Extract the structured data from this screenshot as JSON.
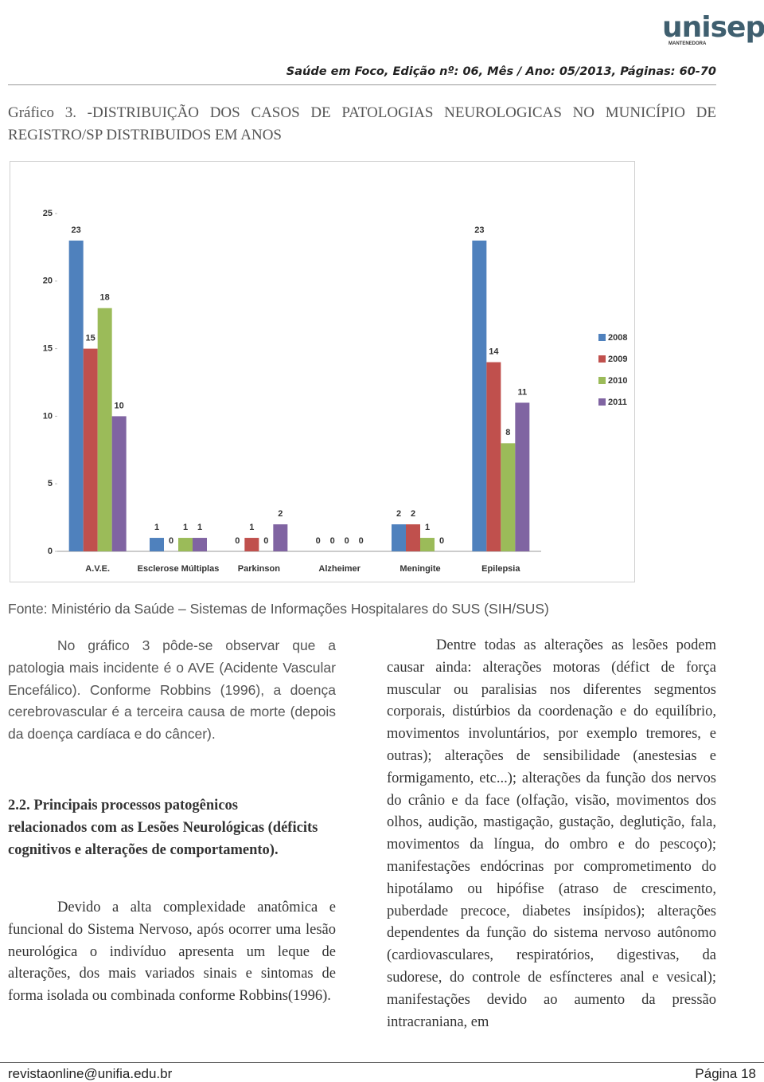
{
  "header": {
    "logo": "unisepe",
    "logo_subtitle": "MANTENEDORA",
    "journal": "Saúde em Foco, Edição nº: 06, Mês / Ano: 05/2013, Páginas: 60-70"
  },
  "caption": "Gráfico 3. -DISTRIBUIÇÃO DOS CASOS DE PATOLOGIAS NEUROLOGICAS NO MUNICÍPIO DE REGISTRO/SP DISTRIBUIDOS EM ANOS",
  "chart_data": {
    "type": "bar",
    "categories": [
      "A.V.E.",
      "Esclerose Múltiplas",
      "Parkinson",
      "Alzheimer",
      "Meningite",
      "Epilepsia"
    ],
    "series": [
      {
        "name": "2008",
        "color": "#4f81bd",
        "values": [
          23,
          1,
          0,
          0,
          2,
          23
        ]
      },
      {
        "name": "2009",
        "color": "#c0504d",
        "values": [
          15,
          0,
          1,
          0,
          2,
          14
        ]
      },
      {
        "name": "2010",
        "color": "#9bbb59",
        "values": [
          18,
          1,
          0,
          0,
          1,
          8
        ]
      },
      {
        "name": "2011",
        "color": "#8064a2",
        "values": [
          10,
          1,
          2,
          0,
          0,
          11
        ]
      }
    ],
    "ylim": [
      0,
      25
    ],
    "yticks": [
      0,
      5,
      10,
      15,
      20,
      25
    ],
    "grid": false,
    "legend": "right"
  },
  "source": "Fonte: Ministério da Saúde – Sistemas de Informações Hospitalares do SUS (SIH/SUS)",
  "left_column": {
    "paragraph_1": "No gráfico 3 pôde-se observar que a patologia mais incidente é o AVE (Acidente Vascular Encefálico). Conforme Robbins (1996), a doença cerebrovascular é a terceira causa de morte (depois da doença cardíaca e do câncer).",
    "heading": "2.2. Principais processos patogênicos relacionados com as Lesões Neurológicas (déficits cognitivos e alterações de comportamento).",
    "paragraph_2": "Devido a alta complexidade anatômica e funcional do Sistema Nervoso, após ocorrer uma lesão neurológica o indivíduo apresenta um leque de alterações, dos mais variados sinais e sintomas de forma isolada ou combinada conforme Robbins(1996)."
  },
  "right_column": {
    "paragraph_1": "Dentre todas as alterações as lesões podem causar ainda: alterações motoras (défict de força muscular ou paralisias nos diferentes segmentos corporais, distúrbios da coordenação e do equilíbrio, movimentos involuntários, por exemplo tremores, e outras); alterações de sensibilidade (anestesias e formigamento, etc...); alterações da função dos nervos do crânio e da face (olfação, visão, movimentos dos olhos, audição, mastigação, gustação, deglutição, fala, movimentos da língua, do ombro e do pescoço); manifestações endócrinas por comprometimento do hipotálamo ou hipófise (atraso de crescimento, puberdade precoce, diabetes insípidos); alterações dependentes da função do sistema nervoso autônomo (cardiovasculares, respiratórios, digestivas, da sudorese, do controle de esfíncteres anal e vesical); manifestações devido ao aumento da pressão intracraniana, em"
  },
  "footer": {
    "email": "revistaonline@unifia.edu.br",
    "page": "Página 18"
  }
}
